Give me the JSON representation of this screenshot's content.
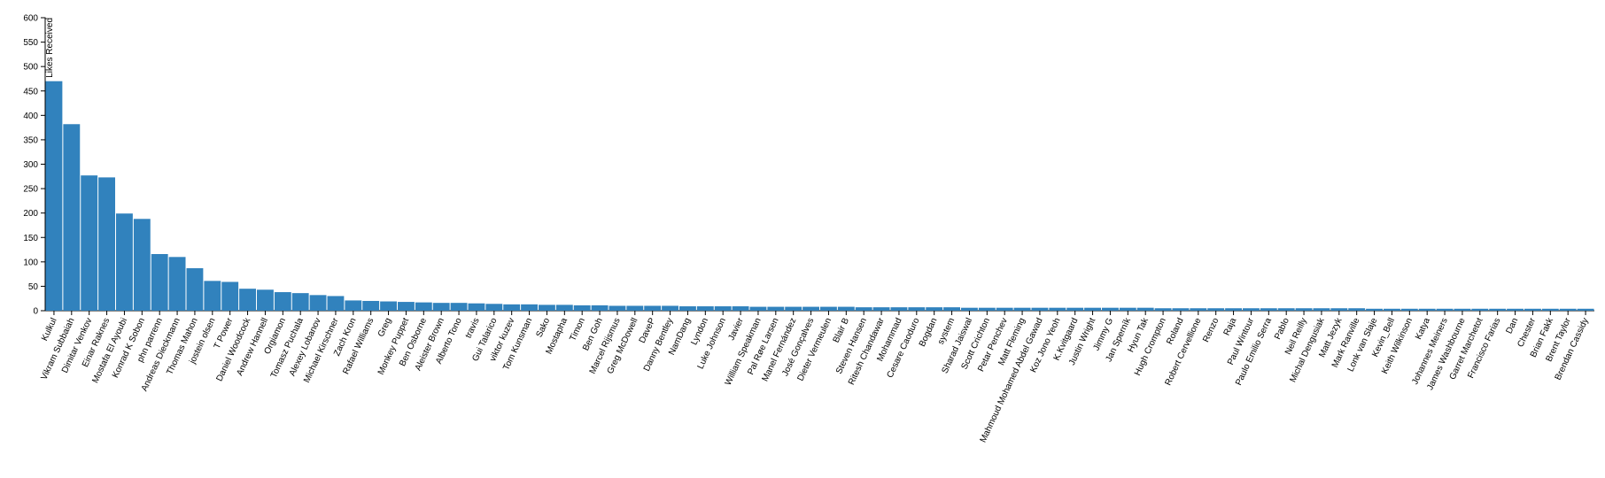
{
  "chart_data": {
    "type": "bar",
    "y_label": "Likes Received",
    "color": "#3182bd",
    "categories": [
      "Kulkul",
      "Vikram Subbaiah",
      "Dimitar Venkov",
      "Einar Raknes",
      "Mostafa El Ayoubi",
      "Konrad K Sobon",
      "phn parrenn",
      "Andreas Dieckmann",
      "Thomas Mahon",
      "jostein olsen",
      "T Power",
      "Daniel Woodcock",
      "Andrew Hannell",
      "Orgiamon",
      "Tomasz Puchala",
      "Alexey Lobanov",
      "Michael Kirschner",
      "Zach Kron",
      "Rafael Williams",
      "Greg",
      "Monkey Puppet",
      "Ben Osborne",
      "Aleister Brown",
      "Alberto Tono",
      "travis",
      "Gui Talarico",
      "viktor kuzev",
      "Tom Kunsman",
      "Sako",
      "Mostapha",
      "Timon",
      "Ben Goh",
      "Marcel Rijsmus",
      "Greg McDowell",
      "DaveP",
      "Danny Bentley",
      "NamDang",
      "Lyndon",
      "Luke Johnson",
      "Javier",
      "William Speakman",
      "Pal Røe Larsen",
      "Manel Fernández",
      "José Gonçalves",
      "Dieter Vermeulen",
      "Blair B",
      "Steven Hansen",
      "Ritesh Chandawar",
      "Mohammad",
      "Cesare Caoduro",
      "Bogdan",
      "system",
      "Sharad Jaiswal",
      "Scott Crichton",
      "Petar Penchev",
      "Matt Fleming",
      "Mahmoud Mohamed Abdel Gawad",
      "Koz Jono Yeoh",
      "K.Kvitgaard",
      "Justin Wright",
      "Jimmy G",
      "Jan Sperník",
      "Hyun Tak",
      "Hugh Crompton",
      "Roland",
      "Robert Cervellione",
      "Renzo",
      "Raja",
      "Paul Wintour",
      "Paulo Emilio Serra",
      "Pablo",
      "Neil Reilly",
      "Michal Dengusiak",
      "Matt Jezyk",
      "Mark Ranville",
      "Lonk van Slaje",
      "Kevin_Bell",
      "Keith Wilkinson",
      "Katya",
      "Johannes Meiners",
      "James Washbourne",
      "Garret Marchetot",
      "Francisco Farias",
      "Dan",
      "Chester",
      "Brian Fakk",
      "Brent Taylor",
      "Brendan Cassidy"
    ],
    "values": [
      470,
      382,
      277,
      273,
      199,
      188,
      116,
      110,
      87,
      61,
      59,
      45,
      43,
      38,
      36,
      32,
      30,
      21,
      20,
      19,
      18,
      17,
      16,
      16,
      15,
      14,
      13,
      13,
      12,
      12,
      11,
      11,
      10,
      10,
      10,
      10,
      9,
      9,
      9,
      9,
      8,
      8,
      8,
      8,
      8,
      8,
      7,
      7,
      7,
      7,
      7,
      7,
      6,
      6,
      6,
      6,
      6,
      6,
      6,
      6,
      6,
      6,
      6,
      5,
      5,
      5,
      5,
      5,
      5,
      5,
      5,
      5,
      5,
      5,
      5,
      4,
      4,
      4,
      4,
      4,
      4,
      4,
      4,
      4,
      4,
      4,
      4,
      4
    ],
    "ylim": [
      0,
      600
    ],
    "yticks": [
      0,
      50,
      100,
      150,
      200,
      250,
      300,
      350,
      400,
      450,
      500,
      550,
      600
    ],
    "grid": false
  }
}
